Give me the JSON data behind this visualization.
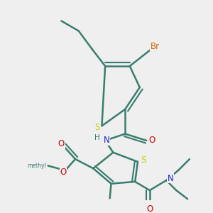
{
  "background_color": "#efefef",
  "bond_color": "#3a7d6e",
  "bond_width": 1.8,
  "atom_colors": {
    "S": "#cccc00",
    "N": "#2222cc",
    "O": "#cc0000",
    "Br": "#cc6600",
    "H": "#3a7d6e",
    "C": "#3a7d6e"
  },
  "font_size_atom": 8.5,
  "background_color_hex": "#efefef"
}
